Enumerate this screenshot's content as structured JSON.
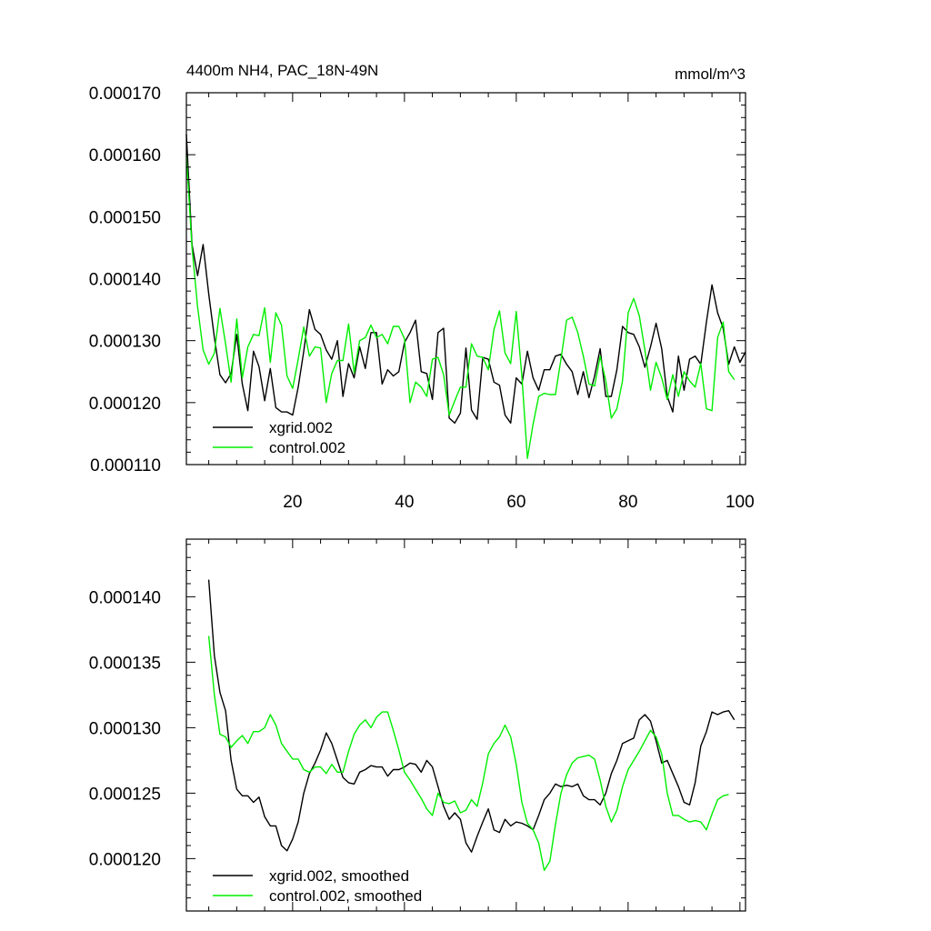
{
  "chart_data": [
    {
      "type": "line",
      "title": "4400m NH4, PAC_18N-49N",
      "units_label": "mmol/m^3",
      "xlim": [
        1,
        101
      ],
      "ylim": [
        0.00011,
        0.00017
      ],
      "x_ticks": [
        20,
        40,
        60,
        80,
        100
      ],
      "x_tick_labels": [
        "20",
        "40",
        "60",
        "80",
        "100"
      ],
      "y_ticks": [
        0.00011,
        0.00012,
        0.00013,
        0.00014,
        0.00015,
        0.00016,
        0.00017
      ],
      "y_tick_labels": [
        "0.000110",
        "0.000120",
        "0.000130",
        "0.000140",
        "0.000150",
        "0.000160",
        "0.000170"
      ],
      "legend_position": "bottom-left",
      "series": [
        {
          "name": "xgrid.002",
          "color": "#000000",
          "x_start": 1,
          "values": [
            0.0001633,
            0.0001455,
            0.0001405,
            0.0001455,
            0.0001375,
            0.0001305,
            0.0001245,
            0.0001232,
            0.0001247,
            0.000131,
            0.000123,
            0.0001187,
            0.0001283,
            0.0001258,
            0.0001203,
            0.0001255,
            0.0001192,
            0.0001185,
            0.0001185,
            0.000118,
            0.0001225,
            0.0001283,
            0.000135,
            0.0001318,
            0.000131,
            0.0001285,
            0.000127,
            0.00013,
            0.000121,
            0.0001263,
            0.000124,
            0.000129,
            0.0001255,
            0.0001313,
            0.0001313,
            0.000123,
            0.0001253,
            0.0001243,
            0.000125,
            0.0001297,
            0.0001313,
            0.0001333,
            0.000125,
            0.0001247,
            0.0001205,
            0.0001313,
            0.000132,
            0.0001175,
            0.0001167,
            0.0001183,
            0.0001288,
            0.0001188,
            0.0001173,
            0.0001273,
            0.000127,
            0.0001233,
            0.0001228,
            0.000118,
            0.0001167,
            0.000124,
            0.000123,
            0.0001283,
            0.000124,
            0.000122,
            0.0001253,
            0.0001253,
            0.0001275,
            0.0001278,
            0.0001262,
            0.000125,
            0.0001213,
            0.000125,
            0.0001208,
            0.0001243,
            0.0001287,
            0.000121,
            0.000121,
            0.0001253,
            0.0001323,
            0.0001313,
            0.000131,
            0.000129,
            0.0001257,
            0.000129,
            0.0001328,
            0.0001287,
            0.000121,
            0.0001185,
            0.0001275,
            0.000122,
            0.000127,
            0.0001275,
            0.0001262,
            0.000133,
            0.000139,
            0.0001345,
            0.000132,
            0.0001262,
            0.000129,
            0.0001265,
            0.0001282
          ]
        },
        {
          "name": "control.002",
          "color": "#00ee00",
          "x_start": 1,
          "values": [
            0.00016,
            0.000145,
            0.0001355,
            0.0001285,
            0.0001262,
            0.000128,
            0.0001352,
            0.0001295,
            0.0001233,
            0.0001335,
            0.000124,
            0.000129,
            0.000131,
            0.0001308,
            0.0001353,
            0.0001265,
            0.0001345,
            0.0001325,
            0.0001243,
            0.0001223,
            0.000127,
            0.0001322,
            0.0001275,
            0.000129,
            0.0001288,
            0.00012,
            0.0001247,
            0.0001268,
            0.0001268,
            0.0001327,
            0.0001248,
            0.00013,
            0.0001305,
            0.0001325,
            0.0001305,
            0.000131,
            0.0001295,
            0.0001323,
            0.0001323,
            0.0001303,
            0.00012,
            0.0001233,
            0.0001225,
            0.000121,
            0.000127,
            0.0001273,
            0.0001245,
            0.000118,
            0.0001203,
            0.0001225,
            0.0001225,
            0.0001295,
            0.0001275,
            0.0001273,
            0.0001253,
            0.0001318,
            0.0001348,
            0.000128,
            0.0001263,
            0.0001347,
            0.0001243,
            0.000111,
            0.0001165,
            0.000121,
            0.0001215,
            0.0001213,
            0.0001213,
            0.000127,
            0.0001333,
            0.0001338,
            0.0001313,
            0.0001275,
            0.000123,
            0.0001227,
            0.0001275,
            0.0001235,
            0.0001175,
            0.000119,
            0.0001235,
            0.0001345,
            0.0001368,
            0.000134,
            0.0001285,
            0.000122,
            0.0001265,
            0.000124,
            0.0001205,
            0.0001245,
            0.000121,
            0.000125,
            0.0001235,
            0.0001225,
            0.0001263,
            0.000119,
            0.0001187,
            0.0001305,
            0.000133,
            0.000125,
            0.0001237
          ]
        }
      ]
    },
    {
      "type": "line",
      "xlim": [
        1,
        101
      ],
      "ylim": [
        0.000116,
        0.0001444
      ],
      "x_ticks": [
        20,
        40,
        60,
        80,
        100
      ],
      "y_ticks": [
        0.00012,
        0.000125,
        0.00013,
        0.000135,
        0.00014
      ],
      "y_tick_labels": [
        "0.000120",
        "0.000125",
        "0.000130",
        "0.000135",
        "0.000140"
      ],
      "legend_position": "bottom-left",
      "series": [
        {
          "name": "xgrid.002, smoothed",
          "color": "#000000",
          "x_start": 5,
          "values": [
            0.0001413,
            0.0001355,
            0.0001327,
            0.0001313,
            0.0001275,
            0.0001253,
            0.0001248,
            0.0001248,
            0.0001243,
            0.0001247,
            0.0001232,
            0.0001225,
            0.0001225,
            0.000121,
            0.0001206,
            0.0001215,
            0.0001228,
            0.000125,
            0.0001265,
            0.0001273,
            0.0001283,
            0.0001296,
            0.0001288,
            0.0001275,
            0.0001262,
            0.0001258,
            0.0001257,
            0.0001266,
            0.0001268,
            0.0001271,
            0.000127,
            0.000127,
            0.0001263,
            0.0001268,
            0.0001268,
            0.000127,
            0.0001273,
            0.0001272,
            0.0001266,
            0.0001275,
            0.000127,
            0.0001255,
            0.000124,
            0.000123,
            0.0001235,
            0.000123,
            0.0001212,
            0.0001205,
            0.0001217,
            0.0001228,
            0.0001238,
            0.0001222,
            0.000122,
            0.000123,
            0.0001225,
            0.0001228,
            0.0001227,
            0.0001225,
            0.0001222,
            0.0001233,
            0.0001245,
            0.000125,
            0.0001257,
            0.0001255,
            0.0001256,
            0.0001255,
            0.0001257,
            0.0001248,
            0.0001245,
            0.0001245,
            0.0001241,
            0.000125,
            0.0001265,
            0.0001275,
            0.0001288,
            0.000129,
            0.0001292,
            0.0001306,
            0.000131,
            0.0001305,
            0.000129,
            0.0001273,
            0.0001275,
            0.0001265,
            0.0001255,
            0.0001243,
            0.0001241,
            0.0001258,
            0.0001286,
            0.0001297,
            0.0001312,
            0.000131,
            0.0001312,
            0.0001313,
            0.0001306
          ]
        },
        {
          "name": "control.002, smoothed",
          "color": "#00ee00",
          "x_start": 5,
          "values": [
            0.000137,
            0.0001325,
            0.0001295,
            0.0001293,
            0.0001285,
            0.000129,
            0.0001294,
            0.0001288,
            0.0001297,
            0.0001297,
            0.00013,
            0.000131,
            0.0001302,
            0.0001288,
            0.0001282,
            0.0001276,
            0.0001276,
            0.0001268,
            0.0001266,
            0.000127,
            0.000127,
            0.0001265,
            0.0001272,
            0.0001266,
            0.0001266,
            0.0001282,
            0.0001295,
            0.0001302,
            0.0001306,
            0.00013,
            0.0001308,
            0.0001312,
            0.0001312,
            0.0001298,
            0.0001283,
            0.0001266,
            0.000126,
            0.0001253,
            0.0001246,
            0.0001238,
            0.0001233,
            0.000125,
            0.0001243,
            0.0001242,
            0.0001244,
            0.0001235,
            0.0001237,
            0.0001245,
            0.000124,
            0.0001258,
            0.000128,
            0.0001288,
            0.0001293,
            0.0001302,
            0.0001293,
            0.0001272,
            0.0001243,
            0.0001227,
            0.0001222,
            0.0001212,
            0.0001191,
            0.0001198,
            0.0001226,
            0.000125,
            0.0001264,
            0.0001273,
            0.0001277,
            0.0001278,
            0.0001279,
            0.0001276,
            0.000126,
            0.000124,
            0.0001228,
            0.0001237,
            0.0001255,
            0.0001268,
            0.0001275,
            0.0001282,
            0.000129,
            0.0001298,
            0.0001293,
            0.000128,
            0.000125,
            0.0001233,
            0.0001233,
            0.000123,
            0.0001228,
            0.0001229,
            0.0001228,
            0.0001222,
            0.0001234,
            0.0001245,
            0.0001248,
            0.0001249
          ]
        }
      ]
    }
  ]
}
